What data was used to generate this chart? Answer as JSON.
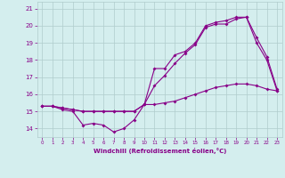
{
  "xlabel": "Windchill (Refroidissement éolien,°C)",
  "background_color": "#d4eeee",
  "grid_color": "#b0cccc",
  "line_color": "#880088",
  "xlim": [
    -0.5,
    23.5
  ],
  "ylim": [
    13.5,
    21.4
  ],
  "xticks": [
    0,
    1,
    2,
    3,
    4,
    5,
    6,
    7,
    8,
    9,
    10,
    11,
    12,
    13,
    14,
    15,
    16,
    17,
    18,
    19,
    20,
    21,
    22,
    23
  ],
  "yticks": [
    14,
    15,
    16,
    17,
    18,
    19,
    20,
    21
  ],
  "hours": [
    0,
    1,
    2,
    3,
    4,
    5,
    6,
    7,
    8,
    9,
    10,
    11,
    12,
    13,
    14,
    15,
    16,
    17,
    18,
    19,
    20,
    21,
    22,
    23
  ],
  "line1": [
    15.3,
    15.3,
    15.1,
    15.0,
    14.2,
    14.3,
    14.2,
    13.8,
    14.0,
    14.5,
    15.4,
    17.5,
    17.5,
    18.3,
    18.5,
    19.0,
    20.0,
    20.2,
    20.3,
    20.5,
    20.5,
    19.0,
    18.0,
    16.2
  ],
  "line2": [
    15.3,
    15.3,
    15.2,
    15.1,
    15.0,
    15.0,
    15.0,
    15.0,
    15.0,
    15.0,
    15.4,
    15.4,
    15.5,
    15.6,
    15.8,
    16.0,
    16.2,
    16.4,
    16.5,
    16.6,
    16.6,
    16.5,
    16.3,
    16.2
  ],
  "line3": [
    15.3,
    15.3,
    15.2,
    15.1,
    15.0,
    15.0,
    15.0,
    15.0,
    15.0,
    15.0,
    15.4,
    16.5,
    17.1,
    17.8,
    18.4,
    18.9,
    19.9,
    20.1,
    20.1,
    20.4,
    20.5,
    19.3,
    18.2,
    16.3
  ]
}
